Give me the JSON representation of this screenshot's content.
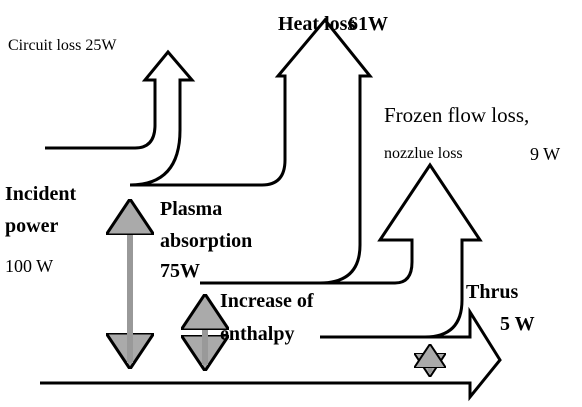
{
  "labels": {
    "circuit_loss": "Circuit loss 25W",
    "heat_loss": "Heat loss",
    "heat_loss_value": "61W",
    "frozen_flow_loss": "Frozen flow loss,",
    "nozzle_loss": "nozzlue loss",
    "frozen_value": "9 W",
    "incident_1": "Incident",
    "incident_2": "power",
    "incident_value": "100 W",
    "plasma_1": "Plasma",
    "plasma_2": "absorption",
    "plasma_value": "75W",
    "enthalpy_1": "Increase of",
    "enthalpy_2": "enthalpy",
    "thrust": "Thrus",
    "thrust_value": "5 W"
  }
}
